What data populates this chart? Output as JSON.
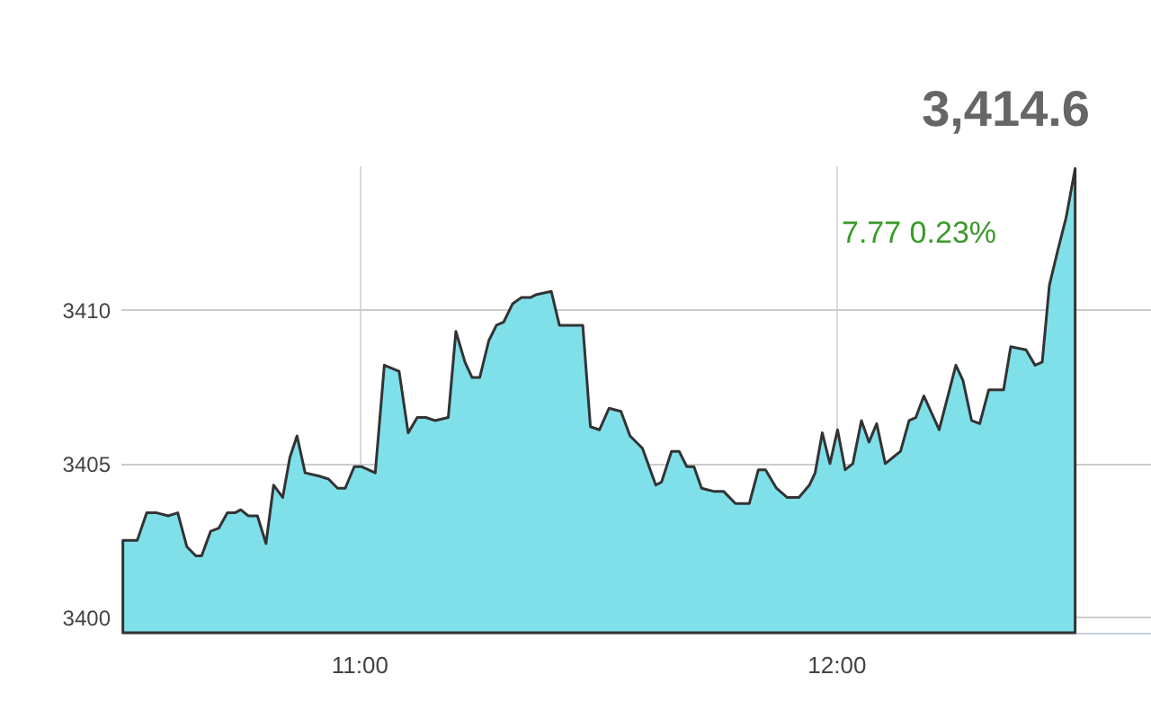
{
  "chart_data": {
    "type": "area",
    "annotations": [
      "3,414.6",
      "7.77  0.23%"
    ],
    "x": [
      10.505,
      10.535,
      10.555,
      10.576,
      10.6,
      10.62,
      10.639,
      10.658,
      10.67,
      10.689,
      10.706,
      10.724,
      10.74,
      10.752,
      10.768,
      10.787,
      10.805,
      10.821,
      10.84,
      10.855,
      10.87,
      10.887,
      10.915,
      10.936,
      10.955,
      10.971,
      10.99,
      11.006,
      11.034,
      11.053,
      11.084,
      11.103,
      11.122,
      11.14,
      11.159,
      11.187,
      11.203,
      11.222,
      11.237,
      11.253,
      11.272,
      11.288,
      11.303,
      11.322,
      11.34,
      11.359,
      11.372,
      11.403,
      11.42,
      11.447,
      11.469,
      11.485,
      11.504,
      11.524,
      11.549,
      11.568,
      11.594,
      11.622,
      11.634,
      11.655,
      11.671,
      11.687,
      11.702,
      11.718,
      11.743,
      11.764,
      11.789,
      11.818,
      11.837,
      11.852,
      11.875,
      11.897,
      11.922,
      11.944,
      11.956,
      11.971,
      11.987,
      12.003,
      12.019,
      12.035,
      12.053,
      12.069,
      12.085,
      12.103,
      12.119,
      12.135,
      12.153,
      12.167,
      12.184,
      12.216,
      12.251,
      12.266,
      12.284,
      12.301,
      12.32,
      12.351,
      12.366,
      12.398,
      12.417,
      12.432,
      12.447,
      12.464,
      12.482,
      12.501
    ],
    "series": [
      {
        "color": "#7fe0ea",
        "values": [
          3402.5,
          3402.5,
          3403.4,
          3403.4,
          3403.3,
          3403.4,
          3402.3,
          3402.0,
          3402.0,
          3402.8,
          3402.9,
          3403.4,
          3403.4,
          3403.5,
          3403.3,
          3403.3,
          3402.4,
          3404.3,
          3403.9,
          3405.2,
          3405.9,
          3404.7,
          3404.6,
          3404.5,
          3404.2,
          3404.2,
          3404.9,
          3404.9,
          3404.7,
          3408.2,
          3408.0,
          3406.0,
          3406.5,
          3406.5,
          3406.4,
          3406.5,
          3409.3,
          3408.3,
          3407.8,
          3407.8,
          3409.0,
          3409.5,
          3409.6,
          3410.2,
          3410.4,
          3410.4,
          3410.5,
          3410.6,
          3409.5,
          3409.5,
          3409.5,
          3406.2,
          3406.1,
          3406.8,
          3406.7,
          3405.9,
          3405.5,
          3404.3,
          3404.4,
          3405.4,
          3405.4,
          3404.9,
          3404.9,
          3404.2,
          3404.1,
          3404.1,
          3403.7,
          3403.7,
          3404.8,
          3404.8,
          3404.2,
          3403.9,
          3403.9,
          3404.3,
          3404.7,
          3406.0,
          3405.0,
          3406.1,
          3404.8,
          3405.0,
          3406.4,
          3405.7,
          3406.3,
          3405.0,
          3405.2,
          3405.4,
          3406.4,
          3406.5,
          3407.2,
          3406.1,
          3408.2,
          3407.7,
          3406.4,
          3406.3,
          3407.4,
          3407.4,
          3408.8,
          3408.7,
          3408.2,
          3408.3,
          3410.8,
          3411.9,
          3413.0,
          3414.6
        ]
      }
    ],
    "xlim": [
      10.5,
      12.66
    ],
    "xticks": [
      {
        "value": 11,
        "label": "11:00"
      },
      {
        "value": 12,
        "label": "12:00"
      }
    ],
    "ylim": [
      3399.5,
      3414.7
    ],
    "yticks": [
      3400,
      3405,
      3410
    ],
    "grid": true
  }
}
